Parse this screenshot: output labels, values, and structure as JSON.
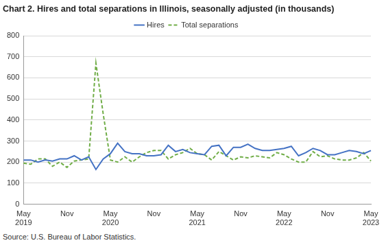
{
  "chart_data": {
    "type": "line",
    "title": "Chart 2. Hires and total separations in Illinois, seasonally adjusted (in thousands)",
    "source": "Source: U.S. Bureau of Labor Statistics.",
    "categories": [
      "May 2019",
      null,
      null,
      null,
      null,
      null,
      "Nov",
      null,
      null,
      null,
      null,
      null,
      "May 2020",
      null,
      null,
      null,
      null,
      null,
      "Nov",
      null,
      null,
      null,
      null,
      null,
      "May 2021",
      null,
      null,
      null,
      null,
      null,
      "Nov",
      null,
      null,
      null,
      null,
      null,
      "May 2022",
      null,
      null,
      null,
      null,
      null,
      "Nov",
      null,
      null,
      null,
      null,
      null,
      "May 2023"
    ],
    "series": [
      {
        "name": "Hires",
        "color": "#4472c4",
        "line_style": "solid",
        "values": [
          210,
          210,
          200,
          210,
          205,
          215,
          215,
          230,
          210,
          225,
          165,
          215,
          240,
          290,
          250,
          240,
          240,
          230,
          230,
          235,
          280,
          250,
          260,
          245,
          240,
          235,
          275,
          280,
          230,
          270,
          270,
          285,
          265,
          255,
          255,
          260,
          265,
          275,
          230,
          245,
          265,
          255,
          235,
          235,
          245,
          255,
          250,
          240,
          255
        ]
      },
      {
        "name": "Total separations",
        "color": "#70ad47",
        "line_style": "dashed",
        "values": [
          195,
          190,
          215,
          215,
          180,
          200,
          175,
          205,
          210,
          215,
          670,
          430,
          210,
          200,
          225,
          200,
          225,
          245,
          255,
          255,
          215,
          235,
          245,
          265,
          240,
          235,
          210,
          250,
          230,
          210,
          225,
          220,
          230,
          225,
          220,
          245,
          235,
          215,
          200,
          200,
          250,
          225,
          230,
          215,
          210,
          210,
          220,
          245,
          205
        ]
      }
    ],
    "ylim": [
      0,
      800
    ],
    "yticks": [
      0,
      100,
      200,
      300,
      400,
      500,
      600,
      700,
      800
    ],
    "grid": true,
    "legend": "top"
  }
}
